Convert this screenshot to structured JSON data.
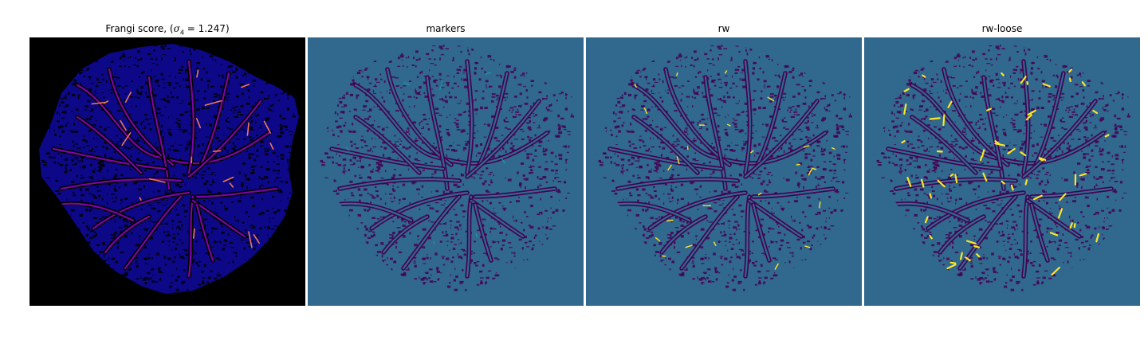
{
  "figure": {
    "panels": [
      {
        "title_prefix": "Frangi score, (",
        "title_math": "σ",
        "title_sub": "4",
        "title_suffix": " = 1.247)",
        "colormap": "plasma",
        "background": "#000000"
      },
      {
        "title": "markers",
        "colormap": "viridis",
        "background": "#31688e"
      },
      {
        "title": "rw",
        "colormap": "viridis",
        "background": "#31688e"
      },
      {
        "title": "rw-loose",
        "colormap": "viridis",
        "background": "#31688e"
      }
    ],
    "colors": {
      "viridis_low": "#440154",
      "viridis_mid": "#31688e",
      "viridis_high": "#fde725",
      "viridis_teal": "#21a0a0",
      "plasma_low": "#0d0887",
      "plasma_mid": "#7e03a8",
      "plasma_high": "#f0f921",
      "plasma_orange": "#ed7953"
    }
  }
}
